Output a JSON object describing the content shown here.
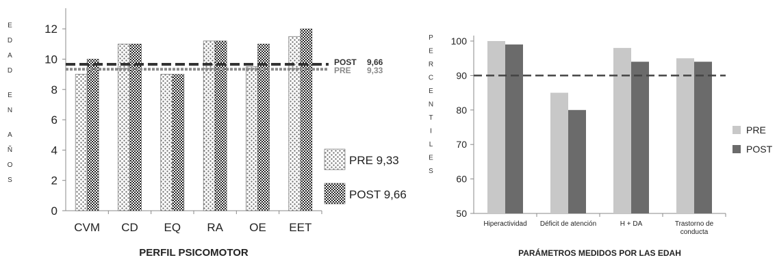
{
  "chart_data": [
    {
      "type": "bar",
      "xlabel": "PERFIL PSICOMOTOR",
      "ylabel": "EDAD EN AÑOS",
      "categories": [
        "CVM",
        "CD",
        "EQ",
        "RA",
        "OE",
        "EET"
      ],
      "series": [
        {
          "name": "PRE 9,33",
          "values": [
            9,
            11,
            9,
            11.2,
            9.5,
            11.5
          ]
        },
        {
          "name": "POST 9,66",
          "values": [
            10,
            11,
            9,
            11.2,
            11,
            12
          ]
        }
      ],
      "ylim": [
        0,
        13
      ],
      "yticks": [
        0,
        2,
        4,
        6,
        8,
        10,
        12
      ],
      "reference_lines": [
        {
          "label": "POST",
          "value_label": "9,66",
          "value": 9.66,
          "color": "#333333"
        },
        {
          "label": "PRE",
          "value_label": "9,33",
          "value": 9.33,
          "color": "#8a8a8a"
        }
      ],
      "grid": false,
      "legend": "right"
    },
    {
      "type": "bar",
      "xlabel": "PARÁMETROS MEDIDOS POR LAS EDAH",
      "ylabel": "PERCENTILES",
      "categories": [
        [
          "Hiperactividad"
        ],
        [
          "Déficit de atención"
        ],
        [
          "H + DA"
        ],
        [
          "Trastorno de",
          "conducta"
        ]
      ],
      "series": [
        {
          "name": "PRE",
          "values": [
            100,
            85,
            98,
            95
          ],
          "color": "#c8c8c8"
        },
        {
          "name": "POST",
          "values": [
            99,
            80,
            94,
            94
          ],
          "color": "#6b6b6b"
        }
      ],
      "ylim": [
        50,
        100
      ],
      "yticks": [
        50,
        60,
        70,
        80,
        90,
        100
      ],
      "reference_lines": [
        {
          "value": 90,
          "color": "#444444"
        }
      ],
      "grid": false,
      "legend": "right"
    }
  ]
}
